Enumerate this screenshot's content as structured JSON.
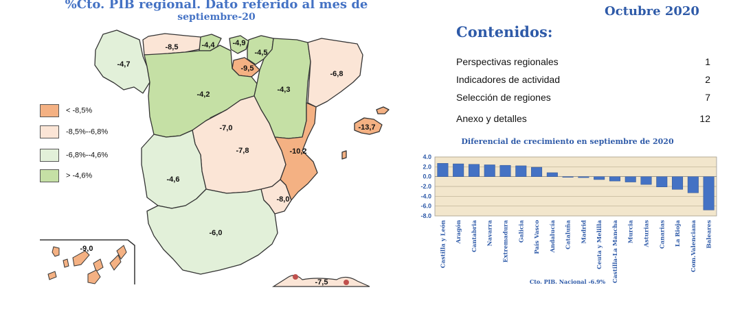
{
  "header": {
    "map_title_line1": "%Cto.  PIB regional. Dato referido al mes de",
    "map_title_line2": "septiembre-20",
    "date": "Octubre 2020"
  },
  "contents": {
    "title": "Contenidos:",
    "items": [
      {
        "label": "Perspectivas regionales",
        "page": "1"
      },
      {
        "label": "Indicadores de actividad",
        "page": "2"
      },
      {
        "label": "Selección de regiones",
        "page": "7"
      },
      {
        "label": "Anexo y detalles",
        "page": "12"
      }
    ]
  },
  "legend": [
    {
      "label": "< -8,5%",
      "color": "#f4b183"
    },
    {
      "label": "-8,5%--6,8%",
      "color": "#fbe5d6"
    },
    {
      "label": "-6,8%--4,6%",
      "color": "#e2f0d9"
    },
    {
      "label": "> -4,6%",
      "color": "#c5e0a5"
    }
  ],
  "map": {
    "region_labels": [
      "-8,5",
      "-4,4",
      "-4,9",
      "-4,5",
      "-4,7",
      "-9,5",
      "-6,8",
      "-4,2",
      "-4,3",
      "-7,0",
      "-7,8",
      "-10,2",
      "-13,7",
      "-4,6",
      "-8,0",
      "-6,0",
      "-9,0",
      "-7,5"
    ],
    "colors": {
      "darkest": "#f4b183",
      "dark": "#fbe5d6",
      "light": "#e2f0d9",
      "lightest": "#c5e0a5",
      "marker": "#c0504d"
    }
  },
  "chart_data": {
    "type": "bar",
    "title": "Diferencial de crecimiento en septiembre de  2020",
    "xlabel": "Cto. PIB. Nacional -6.9%",
    "ylabel": "",
    "ylim": [
      -8.0,
      4.0
    ],
    "yticks": [
      "4.0",
      "2.0",
      "0.0",
      "-2.0",
      "-4.0",
      "-6.0",
      "-8.0"
    ],
    "grid": true,
    "bar_color": "#4472c4",
    "background": "#f2e6cc",
    "categories": [
      "Castilla y León",
      "Aragón",
      "Cantabria",
      "Navarra",
      "Extremadura",
      "Galicia",
      "País Vasco",
      "Andalucía",
      "Cataluña",
      "Madrid",
      "Ceuta y Melilla",
      "Castilla-La Mancha",
      "Murcia",
      "Asturias",
      "Canarias",
      "La Rioja",
      "Com.Valenciana",
      "Baleares"
    ],
    "values": [
      2.7,
      2.6,
      2.5,
      2.4,
      2.3,
      2.2,
      1.9,
      0.8,
      -0.1,
      -0.2,
      -0.6,
      -0.9,
      -1.1,
      -1.6,
      -2.1,
      -2.6,
      -3.3,
      -6.8
    ]
  }
}
